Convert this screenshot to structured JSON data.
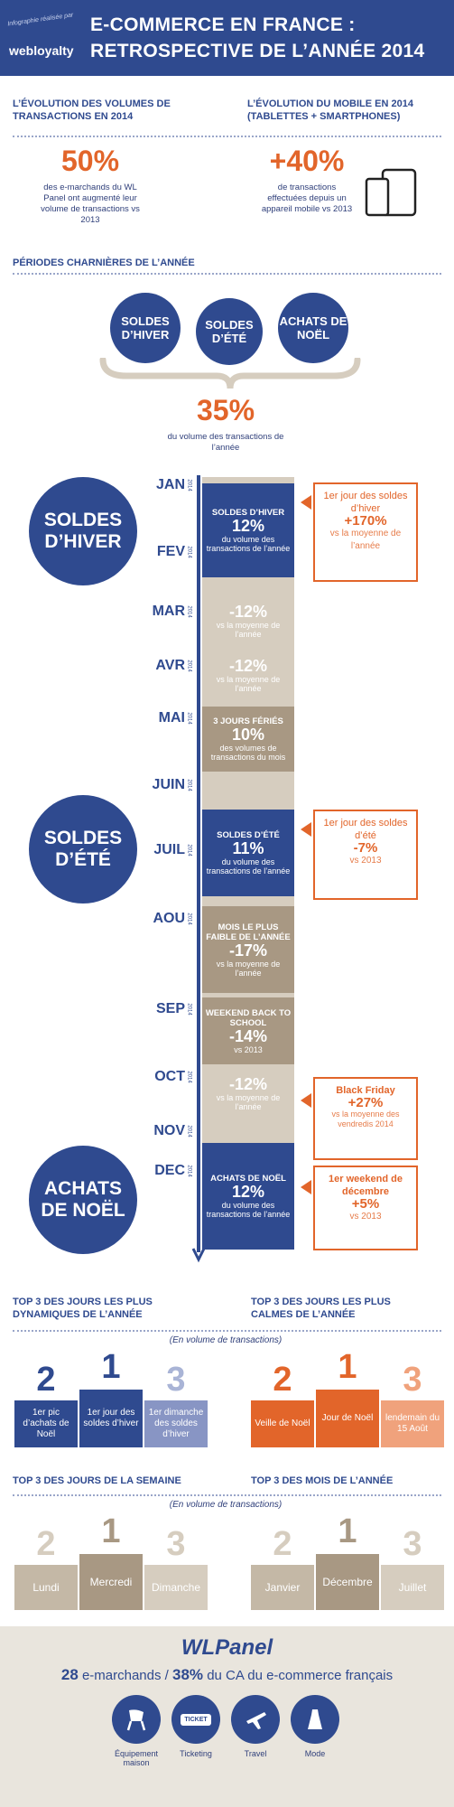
{
  "header": {
    "brand_tagline": "Infographie réalisée par",
    "brand": "webloyalty",
    "title_line1": "E-COMMERCE EN FRANCE :",
    "title_line2": "RETROSPECTIVE DE L’ANNÉE 2014"
  },
  "volumes": {
    "title": "L’ÉVOLUTION DES VOLUMES DE TRANSACTIONS EN 2014",
    "value": "50%",
    "text": "des e-marchands du WL Panel ont augmenté leur volume de transactions vs 2013"
  },
  "mobile": {
    "title": "L’ÉVOLUTION DU MOBILE EN 2014 (TABLETTES + SMARTPHONES)",
    "value": "+40%",
    "text": "de transactions effectuées depuis un appareil mobile vs 2013"
  },
  "periods": {
    "title": "PÉRIODES CHARNIÈRES DE L’ANNÉE",
    "circles": [
      "SOLDES D’HIVER",
      "SOLDES D’ÉTÉ",
      "ACHATS DE NOËL"
    ],
    "value": "35%",
    "text": "du volume des transactions de l’année"
  },
  "timeline": {
    "year": "2014",
    "months": [
      "JAN",
      "FEV",
      "MAR",
      "AVR",
      "MAI",
      "JUIN",
      "JUIL",
      "AOU",
      "SEP",
      "OCT",
      "NOV",
      "DEC"
    ],
    "big_circles": [
      "SOLDES D’HIVER",
      "SOLDES D’ÉTÉ",
      "ACHATS DE NOËL"
    ],
    "blocks": {
      "hiver_title": "SOLDES D’HIVER",
      "hiver_value": "12%",
      "hiver_text": "du volume des transactions de l’année",
      "mar_value": "-12%",
      "mar_text": "vs la moyenne de l’année",
      "avr_value": "-12%",
      "avr_text": "vs la moyenne de l’année",
      "mai_title": "3 JOURS FÉRIÉS",
      "mai_value": "10%",
      "mai_text": "des volumes de transactions du mois",
      "ete_title": "SOLDES D’ÉTÉ",
      "ete_value": "11%",
      "ete_text": "du volume des transactions de l’année",
      "aou_title": "MOIS LE PLUS FAIBLE DE L’ANNÉE",
      "aou_value": "-17%",
      "aou_text": "vs la moyenne de l’année",
      "sep_title": "WEEKEND BACK TO SCHOOL",
      "sep_value": "-14%",
      "sep_text": "vs 2013",
      "oct_value": "-12%",
      "oct_text": "vs la moyenne de l’année",
      "noel_title": "ACHATS DE NOËL",
      "noel_value": "12%",
      "noel_text": "du volume des transactions de l’année"
    },
    "callouts": {
      "hiver_title": "1er jour des soldes d’hiver",
      "hiver_value": "+170%",
      "hiver_text": "vs la moyenne de l’année",
      "ete_title": "1er jour des soldes d’été",
      "ete_value": "-7%",
      "ete_text": "vs 2013",
      "bf_title": "Black Friday",
      "bf_value": "+27%",
      "bf_text": "vs la moyenne des vendredis 2014",
      "wk_title": "1er weekend de décembre",
      "wk_value": "+5%",
      "wk_text": "vs 2013"
    }
  },
  "top_dyn": {
    "title": "TOP 3 DES JOURS LES PLUS DYNAMIQUES DE L’ANNÉE",
    "ranks": [
      "2",
      "1",
      "3"
    ],
    "labels": [
      "1er pic d’achats de Noël",
      "1er jour des soldes d’hiver",
      "1er dimanche des soldes d’hiver"
    ]
  },
  "top_calm": {
    "title": "TOP 3 DES JOURS LES PLUS CALMES DE L’ANNÉE",
    "ranks": [
      "2",
      "1",
      "3"
    ],
    "labels": [
      "Veille de Noël",
      "Jour de Noël",
      "lendemain du 15 Août"
    ]
  },
  "note": "(En volume de transactions)",
  "top_week": {
    "title": "TOP 3 DES JOURS DE LA SEMAINE",
    "ranks": [
      "2",
      "1",
      "3"
    ],
    "labels": [
      "Lundi",
      "Mercredi",
      "Dimanche"
    ]
  },
  "top_month": {
    "title": "TOP 3 DES MOIS DE L’ANNÉE",
    "ranks": [
      "2",
      "1",
      "3"
    ],
    "labels": [
      "Janvier",
      "Décembre",
      "Juillet"
    ]
  },
  "footer": {
    "brand": "WLPanel",
    "stat1": "28",
    "stat1_text": "e-marchands /",
    "stat2": "38%",
    "stat2_text": "du CA du e-commerce français",
    "icons": [
      "Équipement maison",
      "Ticketing",
      "Travel",
      "Mode"
    ],
    "ticket_word": "TICKET"
  },
  "colors": {
    "navy": "#2f4a8f",
    "orange": "#e2652a",
    "beige": "#d6cdbf",
    "taupe": "#a89883"
  }
}
